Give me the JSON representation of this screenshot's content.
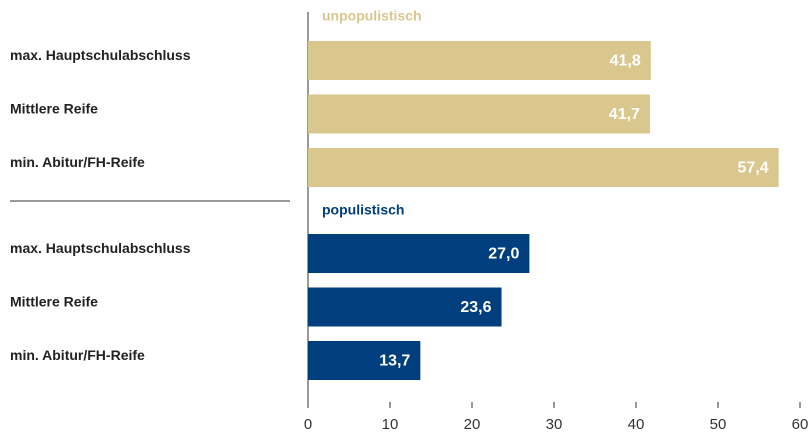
{
  "chart_data": {
    "type": "bar",
    "orientation": "horizontal",
    "categories": [
      "max. Hauptschulabschluss",
      "Mittlere Reife",
      "min. Abitur/FH-Reife"
    ],
    "series": [
      {
        "name": "unpopulistisch",
        "color": "#d9c78e",
        "values": [
          41.8,
          41.7,
          57.4
        ],
        "value_labels": [
          "41,8",
          "41,7",
          "57,4"
        ]
      },
      {
        "name": "populistisch",
        "color": "#003e7e",
        "values": [
          27.0,
          23.6,
          13.7
        ],
        "value_labels": [
          "27,0",
          "23,6",
          "13,7"
        ]
      }
    ],
    "xlim": [
      0,
      60
    ],
    "xticks": [
      0,
      10,
      20,
      30,
      40,
      50,
      60
    ]
  }
}
